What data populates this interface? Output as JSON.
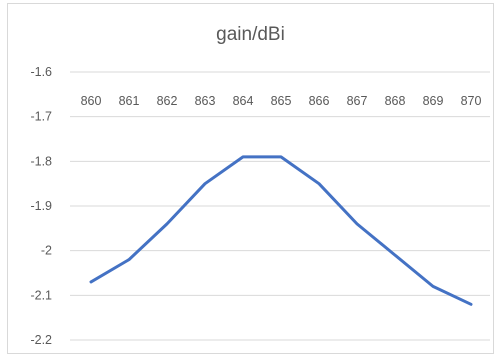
{
  "chart_data": {
    "type": "line",
    "title": "gain/dBi",
    "xlabel": "",
    "ylabel": "",
    "x": [
      860,
      861,
      862,
      863,
      864,
      865,
      866,
      867,
      868,
      869,
      870
    ],
    "series": [
      {
        "values": [
          -2.07,
          -2.02,
          -1.94,
          -1.85,
          -1.79,
          -1.79,
          -1.85,
          -1.94,
          -2.01,
          -2.08,
          -2.12
        ]
      }
    ],
    "ylim": [
      -2.2,
      -1.6
    ],
    "yticks": [
      -1.6,
      -1.7,
      -1.8,
      -1.9,
      -2,
      -2.1,
      -2.2
    ],
    "xaxis_position": "top",
    "grid": true,
    "legend": "none",
    "colors": {
      "line": "#4472c4",
      "grid": "#d9d9d9",
      "text": "#595959"
    }
  }
}
